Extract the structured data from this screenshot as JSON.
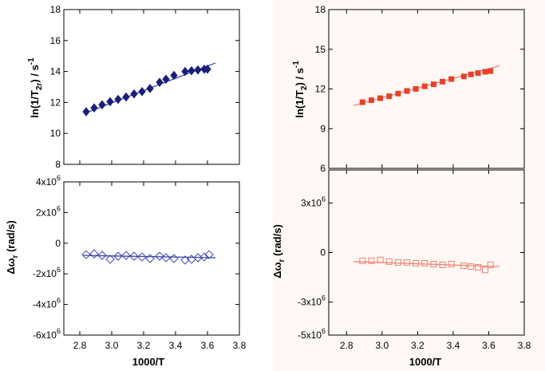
{
  "colors": {
    "left_marker": "#1a1f7a",
    "left_line": "#3b45b0",
    "right_marker": "#e8412a",
    "right_line": "#f08070",
    "right_panel_bg": "#fff8f5"
  },
  "chart_data": [
    {
      "id": "top-left",
      "type": "scatter",
      "marker": "diamond-filled",
      "title": "",
      "xlabel": "",
      "ylabel": "ln(1/T₂r) / s⁻¹",
      "ylabel_parts": {
        "main": "ln(1/T",
        "sub": "2r",
        "close": ") / s",
        "sup": "-1"
      },
      "xlim": [
        2.7,
        3.8
      ],
      "ylim": [
        8,
        18
      ],
      "yticks": [
        {
          "v": 8,
          "label": "8"
        },
        {
          "v": 10,
          "label": "10"
        },
        {
          "v": 12,
          "label": "12"
        },
        {
          "v": 14,
          "label": "14"
        },
        {
          "v": 16,
          "label": "16"
        },
        {
          "v": 18,
          "label": "18"
        }
      ],
      "x": [
        2.84,
        2.89,
        2.94,
        2.99,
        3.04,
        3.09,
        3.14,
        3.19,
        3.24,
        3.3,
        3.34,
        3.39,
        3.46,
        3.5,
        3.54,
        3.58,
        3.6
      ],
      "y": [
        11.4,
        11.65,
        11.85,
        12.05,
        12.2,
        12.35,
        12.55,
        12.7,
        12.9,
        13.3,
        13.5,
        13.75,
        14.0,
        14.05,
        14.1,
        14.15,
        14.15
      ],
      "fit": {
        "x": [
          2.83,
          3.65
        ],
        "y": [
          11.3,
          14.55
        ]
      }
    },
    {
      "id": "top-right",
      "type": "scatter",
      "marker": "square-filled",
      "title": "",
      "xlabel": "",
      "ylabel": "ln(1/T₂) / s⁻¹",
      "ylabel_parts": {
        "main": "ln(1/T",
        "sub": "2",
        "close": ") / s",
        "sup": "-1"
      },
      "xlim": [
        2.7,
        3.8
      ],
      "ylim": [
        6,
        18
      ],
      "yticks": [
        {
          "v": 6,
          "label": "6"
        },
        {
          "v": 9,
          "label": "9"
        },
        {
          "v": 12,
          "label": "12"
        },
        {
          "v": 15,
          "label": "15"
        },
        {
          "v": 18,
          "label": "18"
        }
      ],
      "x": [
        2.89,
        2.94,
        2.99,
        3.04,
        3.09,
        3.14,
        3.19,
        3.24,
        3.29,
        3.34,
        3.39,
        3.46,
        3.5,
        3.54,
        3.58,
        3.61
      ],
      "y": [
        11.0,
        11.15,
        11.3,
        11.45,
        11.65,
        11.85,
        12.0,
        12.2,
        12.35,
        12.55,
        12.75,
        12.95,
        13.1,
        13.2,
        13.3,
        13.35
      ],
      "fit": {
        "x": [
          2.84,
          3.66
        ],
        "y": [
          10.75,
          13.75
        ]
      }
    },
    {
      "id": "bottom-left",
      "type": "scatter",
      "marker": "diamond-open",
      "title": "",
      "xlabel": "1000/T",
      "ylabel": "Δωr (rad/s)",
      "ylabel_parts": {
        "main": "Δω",
        "sub": "r",
        "close": " (rad/s)",
        "sup": ""
      },
      "xlim": [
        2.7,
        3.8
      ],
      "ylim": [
        -6000000,
        4000000
      ],
      "yticks": [
        {
          "v": -6000000,
          "label": "-6x10",
          "sup": "6"
        },
        {
          "v": -4000000,
          "label": "-4x10",
          "sup": "6"
        },
        {
          "v": -2000000,
          "label": "-2x10",
          "sup": "6"
        },
        {
          "v": 0,
          "label": "0"
        },
        {
          "v": 2000000,
          "label": "2x10",
          "sup": "6"
        },
        {
          "v": 4000000,
          "label": "4x10",
          "sup": "6"
        }
      ],
      "xticks": [
        {
          "v": 2.8,
          "label": "2.8"
        },
        {
          "v": 3.0,
          "label": "3.0"
        },
        {
          "v": 3.2,
          "label": "3.2"
        },
        {
          "v": 3.4,
          "label": "3.4"
        },
        {
          "v": 3.6,
          "label": "3.6"
        },
        {
          "v": 3.8,
          "label": "3.8"
        }
      ],
      "x": [
        2.84,
        2.89,
        2.94,
        2.99,
        3.04,
        3.09,
        3.14,
        3.19,
        3.24,
        3.3,
        3.34,
        3.39,
        3.46,
        3.5,
        3.54,
        3.58,
        3.61
      ],
      "y": [
        -750000,
        -700000,
        -800000,
        -1050000,
        -850000,
        -800000,
        -850000,
        -900000,
        -1000000,
        -850000,
        -950000,
        -1000000,
        -1100000,
        -1050000,
        -950000,
        -900000,
        -750000
      ],
      "fit": {
        "x": [
          2.82,
          3.65
        ],
        "y": [
          -800000,
          -950000
        ]
      }
    },
    {
      "id": "bottom-right",
      "type": "scatter",
      "marker": "square-open",
      "title": "",
      "xlabel": "1000/T",
      "ylabel": "Δωr (rad/s)",
      "ylabel_parts": {
        "main": "Δω",
        "sub": "r",
        "close": " (rad/s)",
        "sup": ""
      },
      "xlim": [
        2.7,
        3.8
      ],
      "ylim": [
        -5000000,
        5000000
      ],
      "yticks": [
        {
          "v": -5000000,
          "label": "-5x10",
          "sup": "6"
        },
        {
          "v": -3000000,
          "label": "-3x10",
          "sup": "6"
        },
        {
          "v": 0,
          "label": "0"
        },
        {
          "v": 3000000,
          "label": "3x10",
          "sup": "6"
        }
      ],
      "xticks": [
        {
          "v": 2.8,
          "label": "2.8"
        },
        {
          "v": 3.0,
          "label": "3.0"
        },
        {
          "v": 3.2,
          "label": "3.2"
        },
        {
          "v": 3.4,
          "label": "3.4"
        },
        {
          "v": 3.6,
          "label": "3.6"
        },
        {
          "v": 3.8,
          "label": "3.8"
        }
      ],
      "x": [
        2.89,
        2.94,
        2.99,
        3.04,
        3.09,
        3.14,
        3.19,
        3.24,
        3.29,
        3.34,
        3.39,
        3.46,
        3.5,
        3.54,
        3.58,
        3.61
      ],
      "y": [
        -500000,
        -500000,
        -450000,
        -550000,
        -600000,
        -600000,
        -650000,
        -650000,
        -700000,
        -750000,
        -700000,
        -800000,
        -850000,
        -900000,
        -1050000,
        -750000
      ],
      "fit": {
        "x": [
          2.84,
          3.66
        ],
        "y": [
          -550000,
          -850000
        ]
      }
    }
  ]
}
